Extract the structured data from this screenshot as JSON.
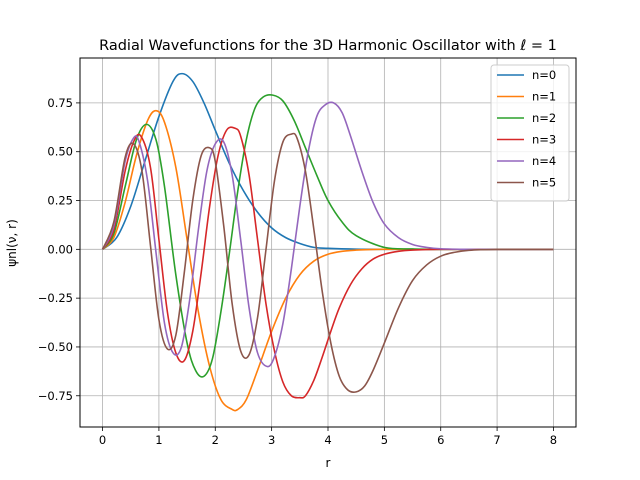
{
  "chart_data": {
    "type": "line",
    "title": "Radial Wavefunctions for the 3D Harmonic Oscillator with ℓ = 1",
    "xlabel": "r",
    "ylabel": "ψnl(ν, r)",
    "xlim": [
      -0.4,
      8.4
    ],
    "ylim": [
      -0.91,
      0.98
    ],
    "x_ticks": [
      "0",
      "1",
      "2",
      "3",
      "4",
      "5",
      "6",
      "7",
      "8"
    ],
    "y_ticks": [
      "−0.75",
      "−0.50",
      "−0.25",
      "0.00",
      "0.25",
      "0.50",
      "0.75"
    ],
    "grid": true,
    "legend_position": "top-right",
    "series": [
      {
        "name": "n=0",
        "color": "#1f77b4",
        "x": [
          0,
          0.25,
          0.5,
          0.75,
          1.0,
          1.25,
          1.41,
          1.6,
          1.8,
          2.0,
          2.25,
          2.5,
          2.75,
          3.0,
          3.25,
          3.5,
          3.75,
          4.0,
          4.5,
          5.0,
          6.0,
          7.0,
          8.0
        ],
        "y": [
          0,
          0.06,
          0.22,
          0.45,
          0.68,
          0.86,
          0.9,
          0.86,
          0.75,
          0.61,
          0.44,
          0.3,
          0.19,
          0.11,
          0.06,
          0.03,
          0.01,
          0.005,
          0.001,
          0,
          0,
          0,
          0
        ]
      },
      {
        "name": "n=1",
        "color": "#ff7f0e",
        "x": [
          0,
          0.2,
          0.4,
          0.6,
          0.8,
          0.95,
          1.1,
          1.3,
          1.5,
          1.7,
          1.9,
          2.1,
          2.3,
          2.4,
          2.55,
          2.75,
          3.0,
          3.25,
          3.5,
          3.75,
          4.0,
          4.25,
          4.5,
          4.75,
          5.0,
          5.5,
          6.0,
          7.0,
          8.0
        ],
        "y": [
          0,
          0.06,
          0.24,
          0.48,
          0.66,
          0.71,
          0.65,
          0.42,
          0.05,
          -0.32,
          -0.6,
          -0.77,
          -0.82,
          -0.82,
          -0.77,
          -0.62,
          -0.42,
          -0.25,
          -0.13,
          -0.06,
          -0.025,
          -0.01,
          -0.004,
          -0.001,
          0,
          0,
          0,
          0,
          0
        ]
      },
      {
        "name": "n=2",
        "color": "#2ca02c",
        "x": [
          0,
          0.2,
          0.4,
          0.6,
          0.78,
          0.95,
          1.1,
          1.3,
          1.5,
          1.65,
          1.8,
          1.95,
          2.1,
          2.25,
          2.4,
          2.55,
          2.7,
          2.85,
          3.02,
          3.2,
          3.4,
          3.6,
          3.8,
          4.0,
          4.25,
          4.5,
          5.0,
          5.5,
          6.0,
          7.0,
          8.0
        ],
        "y": [
          0,
          0.08,
          0.32,
          0.56,
          0.64,
          0.56,
          0.32,
          -0.13,
          -0.48,
          -0.62,
          -0.65,
          -0.56,
          -0.32,
          -0.02,
          0.3,
          0.56,
          0.72,
          0.78,
          0.79,
          0.76,
          0.66,
          0.52,
          0.38,
          0.25,
          0.14,
          0.07,
          0.01,
          0.002,
          0,
          0,
          0
        ]
      },
      {
        "name": "n=3",
        "color": "#d62728",
        "x": [
          0,
          0.2,
          0.4,
          0.55,
          0.68,
          0.85,
          1.0,
          1.15,
          1.3,
          1.45,
          1.6,
          1.75,
          1.9,
          2.05,
          2.2,
          2.35,
          2.45,
          2.6,
          2.75,
          2.9,
          3.05,
          3.2,
          3.35,
          3.5,
          3.6,
          3.75,
          3.9,
          4.05,
          4.2,
          4.4,
          4.6,
          4.8,
          5.0,
          5.25,
          5.5,
          6.0,
          6.5,
          7.0,
          8.0
        ],
        "y": [
          0,
          0.1,
          0.4,
          0.55,
          0.58,
          0.42,
          0.05,
          -0.32,
          -0.53,
          -0.57,
          -0.42,
          -0.12,
          0.22,
          0.48,
          0.61,
          0.62,
          0.58,
          0.38,
          0.05,
          -0.28,
          -0.52,
          -0.68,
          -0.75,
          -0.76,
          -0.75,
          -0.67,
          -0.55,
          -0.42,
          -0.3,
          -0.18,
          -0.1,
          -0.05,
          -0.025,
          -0.01,
          -0.004,
          0,
          0,
          0,
          0
        ]
      },
      {
        "name": "n=4",
        "color": "#9467bd",
        "x": [
          0,
          0.2,
          0.4,
          0.55,
          0.65,
          0.8,
          0.95,
          1.1,
          1.25,
          1.4,
          1.55,
          1.7,
          1.85,
          2.0,
          2.15,
          2.3,
          2.45,
          2.6,
          2.75,
          2.92,
          3.05,
          3.2,
          3.35,
          3.5,
          3.65,
          3.8,
          3.95,
          4.1,
          4.25,
          4.4,
          4.6,
          4.8,
          5.0,
          5.25,
          5.5,
          5.75,
          6.0,
          6.5,
          7.0,
          8.0
        ],
        "y": [
          0,
          0.12,
          0.45,
          0.57,
          0.55,
          0.35,
          -0.02,
          -0.38,
          -0.53,
          -0.5,
          -0.25,
          0.1,
          0.4,
          0.54,
          0.55,
          0.38,
          0.05,
          -0.3,
          -0.53,
          -0.6,
          -0.55,
          -0.38,
          -0.1,
          0.22,
          0.5,
          0.68,
          0.74,
          0.75,
          0.7,
          0.58,
          0.4,
          0.24,
          0.13,
          0.06,
          0.025,
          0.01,
          0.003,
          0,
          0,
          0
        ]
      },
      {
        "name": "n=5",
        "color": "#8c564b",
        "x": [
          0,
          0.2,
          0.4,
          0.55,
          0.7,
          0.85,
          1.0,
          1.15,
          1.3,
          1.45,
          1.6,
          1.75,
          1.9,
          2.0,
          2.15,
          2.3,
          2.45,
          2.6,
          2.75,
          2.9,
          3.05,
          3.2,
          3.35,
          3.45,
          3.6,
          3.75,
          3.9,
          4.05,
          4.2,
          4.35,
          4.5,
          4.65,
          4.8,
          5.0,
          5.25,
          5.5,
          5.75,
          6.0,
          6.25,
          6.5,
          7.0,
          7.5,
          8.0
        ],
        "y": [
          0,
          0.14,
          0.47,
          0.54,
          0.4,
          0.02,
          -0.36,
          -0.51,
          -0.44,
          -0.12,
          0.25,
          0.48,
          0.52,
          0.45,
          0.12,
          -0.28,
          -0.52,
          -0.54,
          -0.35,
          0.0,
          0.35,
          0.55,
          0.59,
          0.57,
          0.4,
          0.1,
          -0.22,
          -0.48,
          -0.65,
          -0.72,
          -0.73,
          -0.7,
          -0.62,
          -0.48,
          -0.3,
          -0.16,
          -0.08,
          -0.035,
          -0.015,
          -0.005,
          0,
          0,
          0
        ]
      }
    ]
  }
}
